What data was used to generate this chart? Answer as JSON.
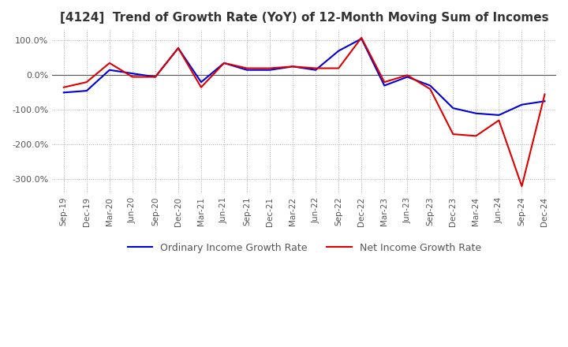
{
  "title": "[4124]  Trend of Growth Rate (YoY) of 12-Month Moving Sum of Incomes",
  "ylim": [
    -340,
    130
  ],
  "yticks": [
    100,
    0,
    -100,
    -200,
    -300
  ],
  "ytick_labels": [
    "100.0%",
    "0.0%",
    "-100.0%",
    "-200.0%",
    "-300.0%"
  ],
  "legend_labels": [
    "Ordinary Income Growth Rate",
    "Net Income Growth Rate"
  ],
  "line_colors": [
    "#0000dd",
    "#dd0000"
  ],
  "background_color": "#ffffff",
  "grid_color": "#aaaaaa",
  "x_labels": [
    "Sep-19",
    "Dec-19",
    "Mar-20",
    "Jun-20",
    "Sep-20",
    "Dec-20",
    "Mar-21",
    "Jun-21",
    "Sep-21",
    "Dec-21",
    "Mar-22",
    "Jun-22",
    "Sep-22",
    "Dec-22",
    "Mar-23",
    "Jun-23",
    "Sep-23",
    "Dec-23",
    "Mar-24",
    "Jun-24",
    "Sep-24",
    "Dec-24"
  ],
  "ordinary_income": [
    -50,
    -45,
    15,
    5,
    -5,
    78,
    -20,
    35,
    15,
    15,
    25,
    15,
    70,
    105,
    -30,
    -5,
    -30,
    -95,
    -110,
    -115,
    -85,
    -75
  ],
  "net_income": [
    -35,
    -20,
    35,
    -5,
    -5,
    78,
    -35,
    35,
    20,
    20,
    25,
    20,
    20,
    108,
    -20,
    0,
    -40,
    -170,
    -175,
    -130,
    -320,
    -55
  ]
}
